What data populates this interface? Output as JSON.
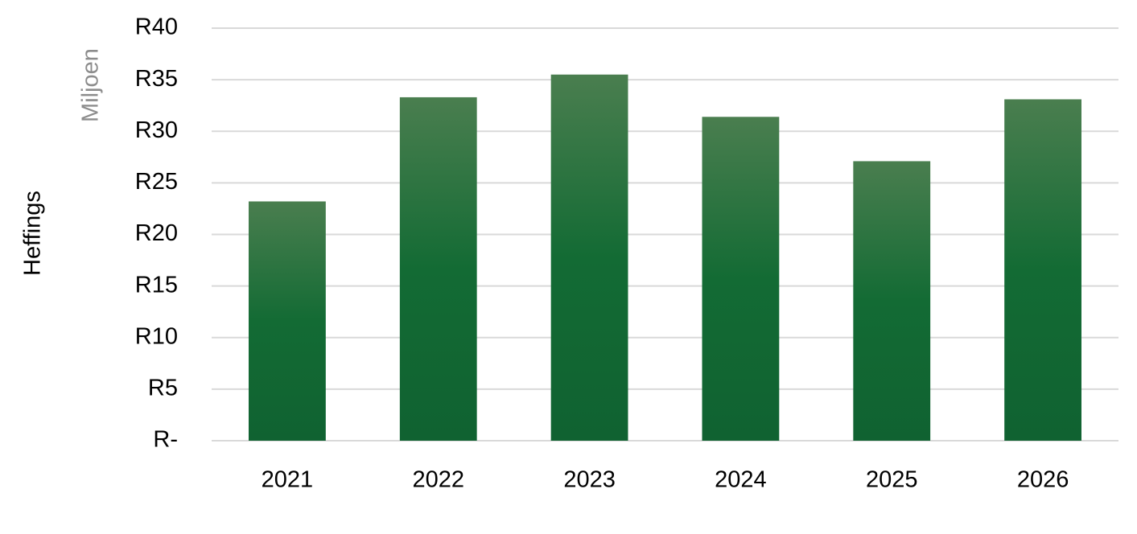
{
  "chart_data": {
    "type": "bar",
    "y_axis_label": "Heffings",
    "y_axis_unit": "Miljoen",
    "categories": [
      "2021",
      "2022",
      "2023",
      "2024",
      "2025",
      "2026"
    ],
    "values": [
      23.2,
      33.3,
      35.5,
      31.4,
      27.1,
      33.1
    ],
    "color": "#136b34",
    "ylim": [
      0,
      40
    ],
    "yticks": [
      {
        "value": 0,
        "label": "R-"
      },
      {
        "value": 5,
        "label": "R5"
      },
      {
        "value": 10,
        "label": "R10"
      },
      {
        "value": 15,
        "label": "R15"
      },
      {
        "value": 20,
        "label": "R20"
      },
      {
        "value": 25,
        "label": "R25"
      },
      {
        "value": 30,
        "label": "R30"
      },
      {
        "value": 35,
        "label": "R35"
      },
      {
        "value": 40,
        "label": "R40"
      }
    ],
    "grid": true
  }
}
